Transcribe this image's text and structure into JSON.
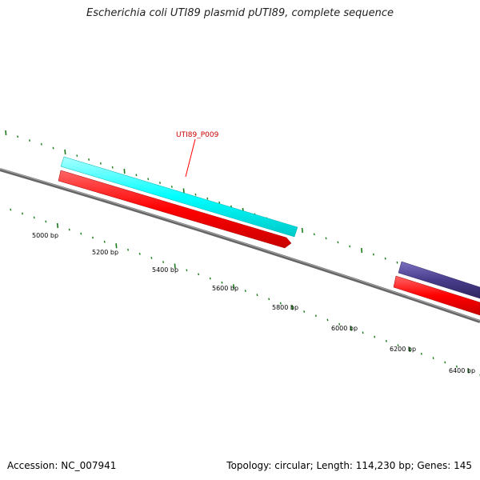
{
  "title": "Escherichia coli UTI89 plasmid pUTI89, complete sequence",
  "footer": {
    "accession": "Accession: NC_007941",
    "summary": "Topology: circular; Length: 114,230 bp; Genes: 145"
  },
  "feature_label": "UTI89_P009",
  "colors": {
    "backbone": "#777777",
    "cds": "#ff0000",
    "gene_cyan": "#00ffff",
    "gene_purple": "#483d8b",
    "tick": "#1a7a1a",
    "label_line": "#ff0000"
  },
  "scale_labels": [
    "5000 bp",
    "5200 bp",
    "5400 bp",
    "5600 bp",
    "5800 bp",
    "6000 bp",
    "6200 bp",
    "6400 bp"
  ]
}
